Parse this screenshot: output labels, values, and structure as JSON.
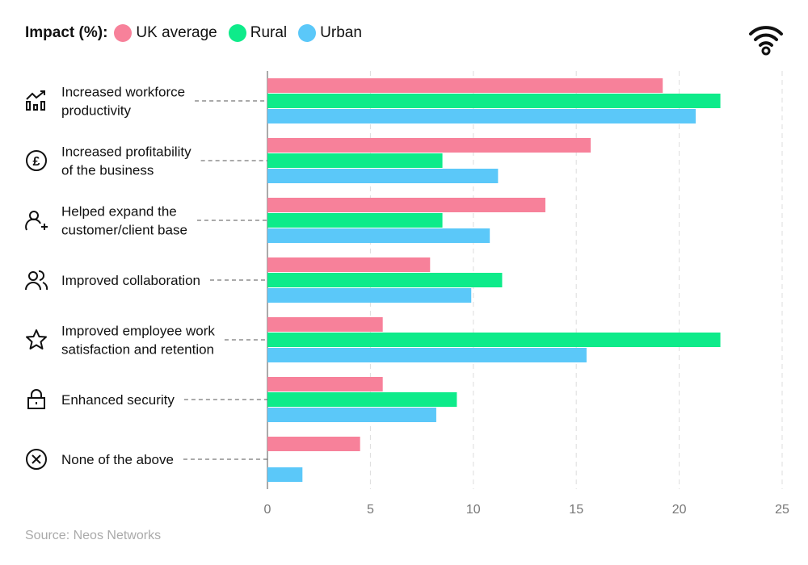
{
  "legend_title": "Impact (%):",
  "source": "Source: Neos Networks",
  "colors": {
    "UK average": "#F7819A",
    "Rural": "#0EEB8A",
    "Urban": "#5BC8F9"
  },
  "chart_data": {
    "type": "bar",
    "orientation": "horizontal",
    "title": "",
    "xlabel": "",
    "ylabel": "",
    "xlim": [
      0,
      25
    ],
    "ticks": [
      0,
      5,
      10,
      15,
      20,
      25
    ],
    "grid": true,
    "legend_position": "top-left",
    "categories": [
      {
        "lines": [
          "Increased workforce",
          "productivity"
        ],
        "icon": "chart-growth-icon"
      },
      {
        "lines": [
          "Increased profitability",
          "of the business"
        ],
        "icon": "pound-coin-icon"
      },
      {
        "lines": [
          "Helped expand the",
          "customer/client base"
        ],
        "icon": "add-user-icon"
      },
      {
        "lines": [
          "Improved collaboration"
        ],
        "icon": "users-icon"
      },
      {
        "lines": [
          "Improved employee work",
          "satisfaction and retention"
        ],
        "icon": "star-icon"
      },
      {
        "lines": [
          "Enhanced security"
        ],
        "icon": "lock-icon"
      },
      {
        "lines": [
          "None of the above"
        ],
        "icon": "x-circle-icon"
      }
    ],
    "series": [
      {
        "name": "UK average",
        "values": [
          19.2,
          15.7,
          13.5,
          7.9,
          5.6,
          5.6,
          4.5
        ]
      },
      {
        "name": "Rural",
        "values": [
          22,
          8.5,
          8.5,
          11.4,
          22,
          9.2,
          0
        ]
      },
      {
        "name": "Urban",
        "values": [
          20.8,
          11.2,
          10.8,
          9.9,
          15.5,
          8.2,
          1.7
        ]
      }
    ]
  }
}
